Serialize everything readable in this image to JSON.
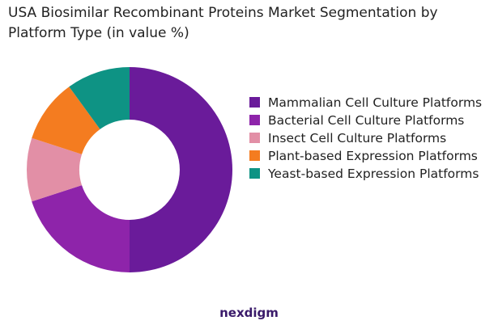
{
  "chart_data": {
    "type": "donut",
    "title": "USA Biosimilar Recombinant Proteins Market Segmentation by Platform Type (in value %)",
    "categories": [
      "Mammalian Cell Culture Platforms",
      "Bacterial Cell Culture Platforms",
      "Insect Cell Culture Platforms",
      "Plant-based Expression Platforms",
      "Yeast-based Expression Platforms"
    ],
    "values": [
      50,
      20,
      10,
      10,
      10
    ],
    "colors": [
      "#6a1b9a",
      "#8e24aa",
      "#e28fa6",
      "#f47c20",
      "#0e9384"
    ],
    "legend": "right",
    "brand": "nexdigm"
  }
}
